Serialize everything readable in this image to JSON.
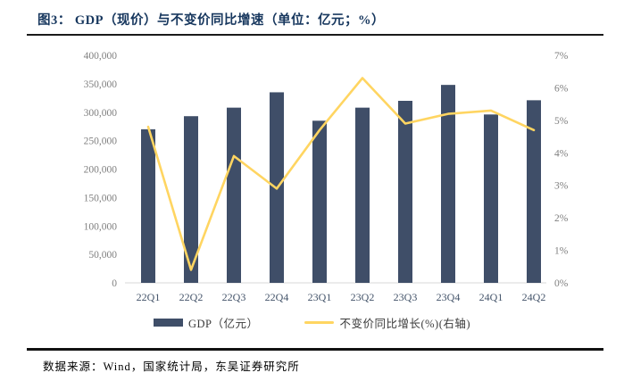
{
  "header": {
    "title": "图3： GDP（现价）与不变价同比增速（单位：亿元；%）"
  },
  "chart_data": {
    "type": "combo",
    "categories": [
      "22Q1",
      "22Q2",
      "22Q3",
      "22Q4",
      "23Q1",
      "23Q2",
      "23Q3",
      "23Q4",
      "24Q1",
      "24Q2"
    ],
    "series": [
      {
        "name": "GDP（亿元）",
        "type": "bar",
        "axis": "left",
        "color": "#3F4E68",
        "values": [
          270000,
          293000,
          308000,
          335000,
          285000,
          308000,
          320000,
          348000,
          296000,
          321000
        ]
      },
      {
        "name": "不变价同比增长(%)(右轴)",
        "type": "line",
        "axis": "right",
        "color": "#FFD561",
        "values": [
          4.8,
          0.4,
          3.9,
          2.9,
          4.7,
          6.3,
          4.9,
          5.2,
          5.3,
          4.7
        ]
      }
    ],
    "left_axis": {
      "min": 0,
      "max": 400000,
      "step": 50000,
      "tick_labels": [
        "400,000",
        "350,000",
        "300,000",
        "250,000",
        "200,000",
        "150,000",
        "100,000",
        "50,000",
        "0"
      ]
    },
    "right_axis": {
      "min": 0,
      "max": 7,
      "step": 1,
      "tick_labels": [
        "7%",
        "6%",
        "5%",
        "4%",
        "3%",
        "2%",
        "1%",
        "0%"
      ]
    },
    "grid": false,
    "legend_position": "bottom",
    "title": "GDP（现价）与不变价同比增速",
    "units": "亿元；%"
  },
  "footer": {
    "source": "数据来源：Wind，国家统计局，东吴证券研究所"
  },
  "colors": {
    "bar": "#3F4E68",
    "line": "#FFD561",
    "title_text": "#17375E",
    "left_tick_text": "#7f7f7f",
    "right_tick_text": "#7f7f7f",
    "x_tick_text": "#44546A",
    "axis_line": "#d9d9d9"
  }
}
